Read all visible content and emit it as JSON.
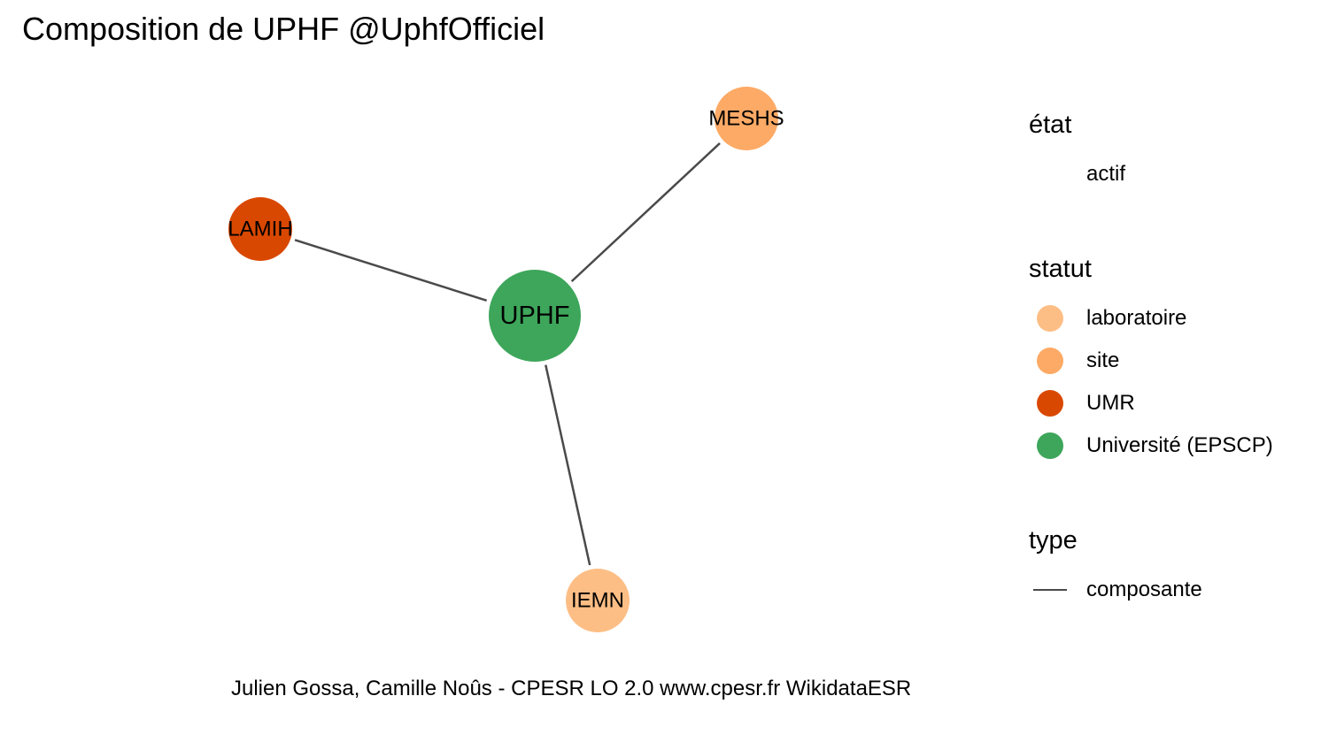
{
  "title": "Composition de UPHF @UphfOfficiel",
  "caption": "Julien Gossa, Camille Noûs - CPESR LO 2.0 www.cpesr.fr WikidataESR",
  "colors": {
    "laboratoire": "#FDBE85",
    "site": "#FDAA66",
    "UMR": "#D94801",
    "universite": "#3DA65A",
    "edge": "#4a4a4a"
  },
  "legend": {
    "etat": {
      "title": "état",
      "items": [
        "actif"
      ]
    },
    "statut": {
      "title": "statut",
      "items": [
        {
          "label": "laboratoire",
          "color": "#FDBE85"
        },
        {
          "label": "site",
          "color": "#FDAA66"
        },
        {
          "label": "UMR",
          "color": "#D94801"
        },
        {
          "label": "Université (EPSCP)",
          "color": "#3DA65A"
        }
      ]
    },
    "type": {
      "title": "type",
      "items": [
        "composante"
      ]
    }
  },
  "graph": {
    "nodes": [
      {
        "id": "UPHF",
        "label": "UPHF",
        "statut": "Université (EPSCP)",
        "color": "#3DA65A"
      },
      {
        "id": "MESHS",
        "label": "MESHS",
        "statut": "site",
        "color": "#FDAA66"
      },
      {
        "id": "LAMIH",
        "label": "LAMIH",
        "statut": "UMR",
        "color": "#D94801"
      },
      {
        "id": "IEMN",
        "label": "IEMN",
        "statut": "laboratoire",
        "color": "#FDBE85"
      }
    ],
    "edges": [
      {
        "from": "UPHF",
        "to": "MESHS",
        "type": "composante"
      },
      {
        "from": "UPHF",
        "to": "LAMIH",
        "type": "composante"
      },
      {
        "from": "UPHF",
        "to": "IEMN",
        "type": "composante"
      }
    ]
  }
}
